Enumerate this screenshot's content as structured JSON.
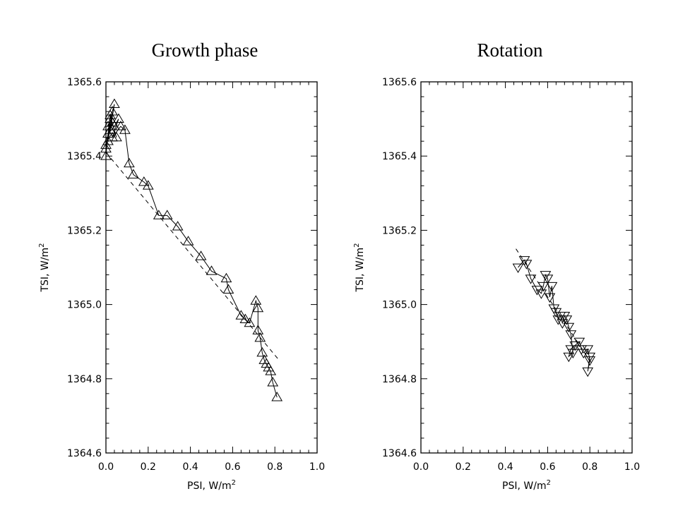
{
  "chart_data": [
    {
      "type": "scatter",
      "title": "Growth phase",
      "xlabel": "PSI, W/m",
      "xlabel_sup": "2",
      "ylabel": "TSI, W/m",
      "ylabel_sup": "2",
      "xlim": [
        0.0,
        1.0
      ],
      "ylim": [
        1364.6,
        1365.6
      ],
      "xticks": [
        "0.0",
        "0.2",
        "0.4",
        "0.6",
        "0.8",
        "1.0"
      ],
      "yticks": [
        "1364.6",
        "1364.8",
        "1365.0",
        "1365.2",
        "1365.4",
        "1365.6"
      ],
      "marker": "triangle-up",
      "connected": true,
      "series": [
        {
          "x": [
            0.0,
            0.01,
            0.0,
            0.02,
            0.01,
            0.03,
            0.01,
            0.04,
            0.02,
            0.0,
            0.03,
            0.05,
            0.02,
            0.01,
            0.04,
            0.06,
            0.03,
            0.07,
            0.09,
            0.11,
            0.13,
            0.18,
            0.2,
            0.25,
            0.29,
            0.34,
            0.39,
            0.45,
            0.5,
            0.57,
            0.58,
            0.64,
            0.66,
            0.68,
            0.71,
            0.72,
            0.72,
            0.73,
            0.74,
            0.75,
            0.76,
            0.77,
            0.78,
            0.79,
            0.81
          ],
          "y": [
            1365.4,
            1365.46,
            1365.42,
            1365.5,
            1365.44,
            1365.52,
            1365.48,
            1365.54,
            1365.47,
            1365.43,
            1365.49,
            1365.45,
            1365.51,
            1365.46,
            1365.48,
            1365.5,
            1365.45,
            1365.48,
            1365.47,
            1365.38,
            1365.35,
            1365.33,
            1365.32,
            1365.24,
            1365.24,
            1365.21,
            1365.17,
            1365.13,
            1365.09,
            1365.07,
            1365.04,
            1364.97,
            1364.96,
            1364.95,
            1365.01,
            1364.99,
            1364.93,
            1364.91,
            1364.87,
            1364.85,
            1364.84,
            1364.83,
            1364.82,
            1364.79,
            1364.75
          ]
        }
      ],
      "fit": {
        "x": [
          0.0,
          0.82
        ],
        "y": [
          1365.41,
          1364.85
        ]
      }
    },
    {
      "type": "scatter",
      "title": "Rotation",
      "xlabel": "PSI, W/m",
      "xlabel_sup": "2",
      "ylabel": "TSI, W/m",
      "ylabel_sup": "2",
      "xlim": [
        0.0,
        1.0
      ],
      "ylim": [
        1364.6,
        1365.6
      ],
      "xticks": [
        "0.0",
        "0.2",
        "0.4",
        "0.6",
        "0.8",
        "1.0"
      ],
      "yticks": [
        "1364.6",
        "1364.8",
        "1365.0",
        "1365.2",
        "1365.4",
        "1365.6"
      ],
      "marker": "triangle-down",
      "connected": true,
      "series": [
        {
          "x": [
            0.46,
            0.49,
            0.5,
            0.52,
            0.55,
            0.57,
            0.58,
            0.59,
            0.6,
            0.61,
            0.62,
            0.63,
            0.64,
            0.65,
            0.66,
            0.67,
            0.68,
            0.69,
            0.7,
            0.71,
            0.72,
            0.7,
            0.71,
            0.73,
            0.75,
            0.76,
            0.77,
            0.79,
            0.8,
            0.79,
            0.8
          ],
          "y": [
            1365.1,
            1365.12,
            1365.11,
            1365.07,
            1365.04,
            1365.03,
            1365.05,
            1365.08,
            1365.07,
            1365.02,
            1365.05,
            1364.99,
            1364.98,
            1364.96,
            1364.97,
            1364.95,
            1364.97,
            1364.96,
            1364.94,
            1364.92,
            1364.87,
            1364.86,
            1364.88,
            1364.89,
            1364.9,
            1364.88,
            1364.87,
            1364.88,
            1364.85,
            1364.82,
            1364.86
          ]
        }
      ],
      "fit": {
        "x": [
          0.45,
          0.81
        ],
        "y": [
          1365.15,
          1364.84
        ]
      }
    }
  ]
}
